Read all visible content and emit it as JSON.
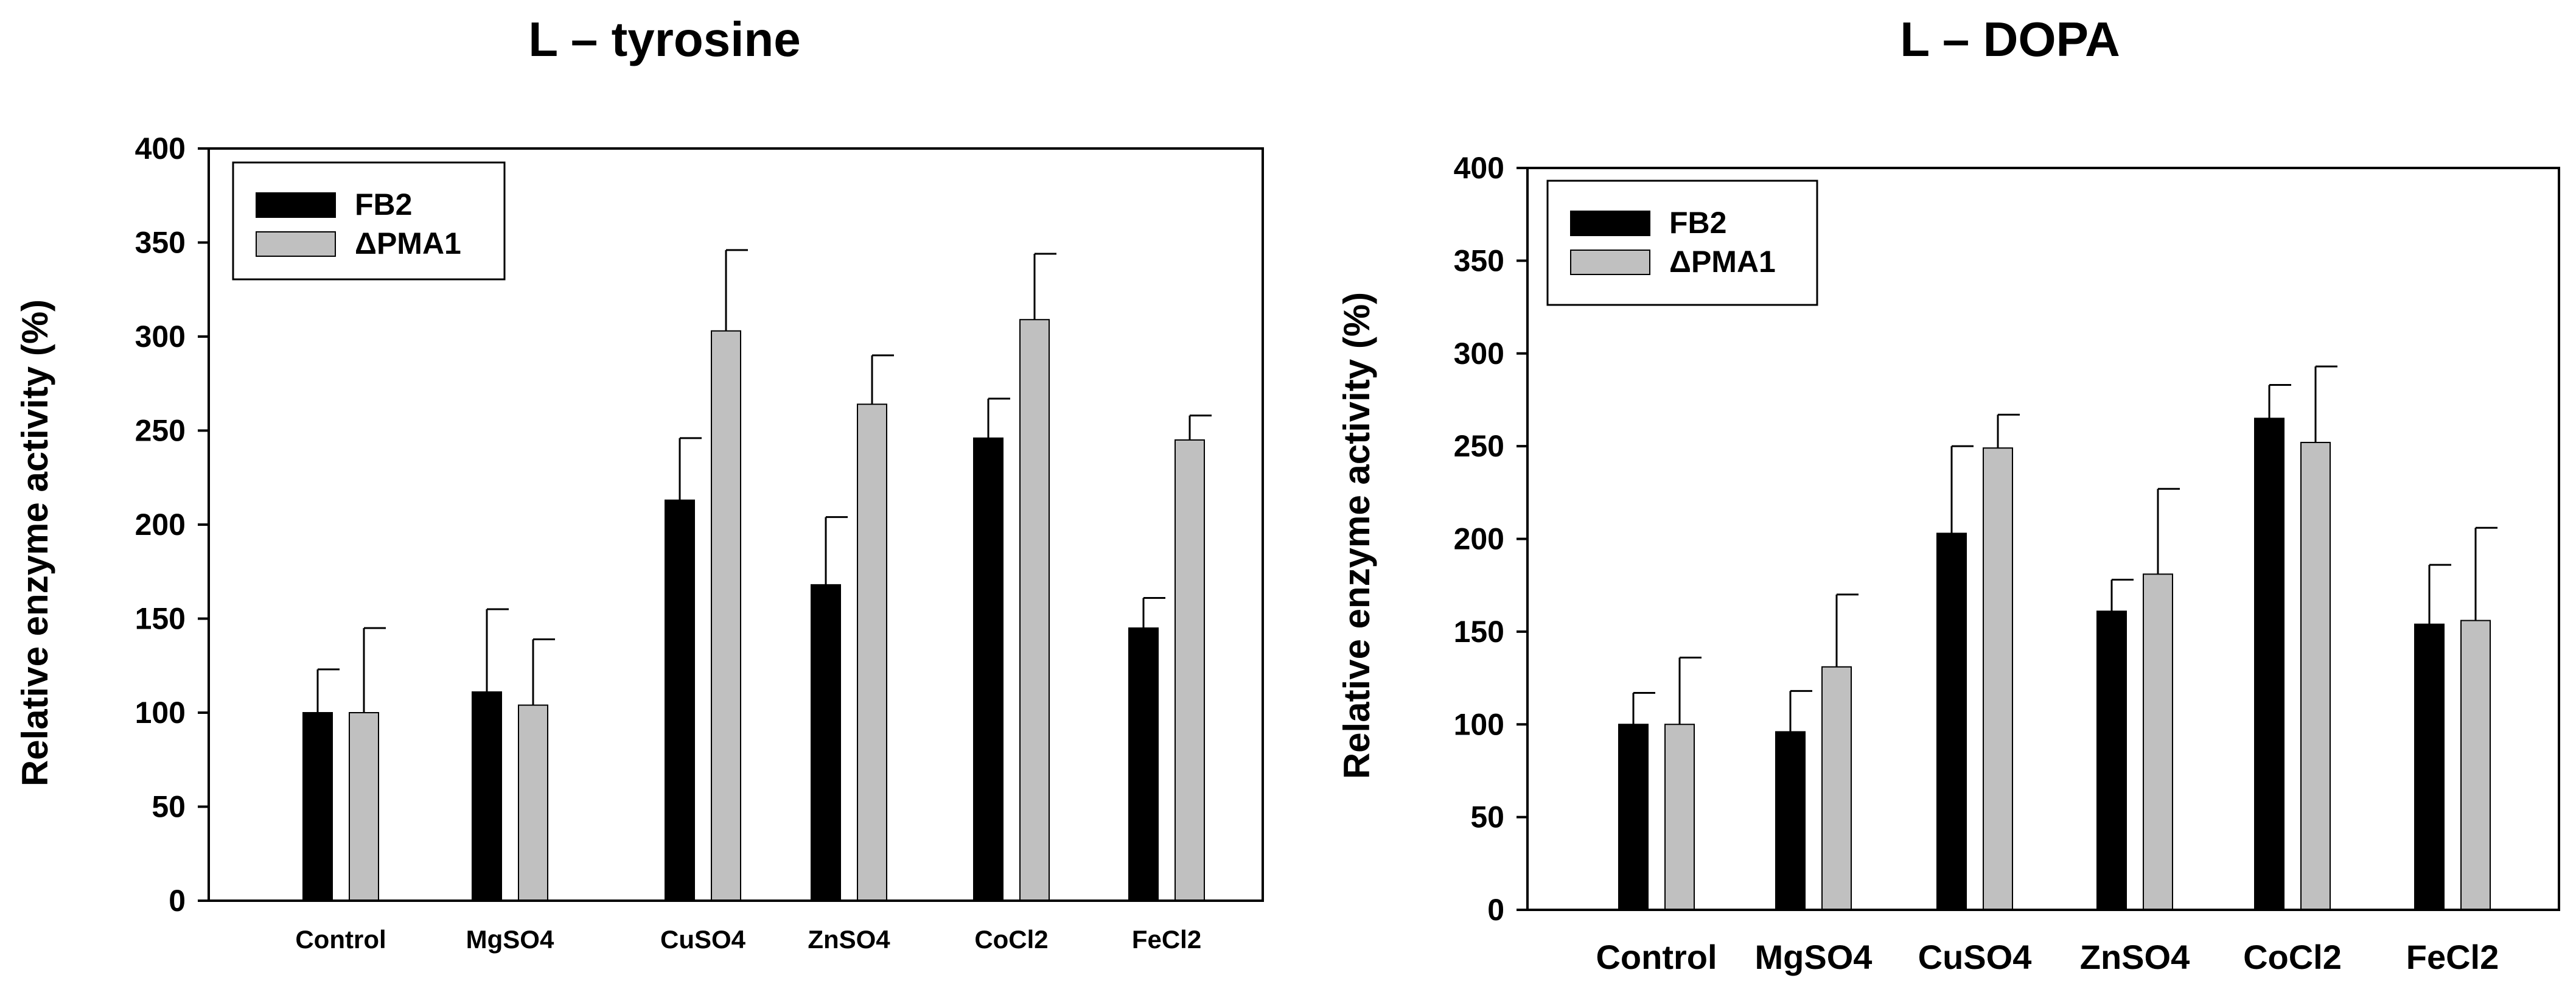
{
  "chart_data": [
    {
      "type": "bar",
      "title": "L – tyrosine",
      "xlabel": "",
      "ylabel": "Relative enzyme activity (%)",
      "ylim": [
        0,
        400
      ],
      "yticks": [
        0,
        50,
        100,
        150,
        200,
        250,
        300,
        350,
        400
      ],
      "categories": [
        "Control",
        "MgSO4",
        "CuSO4",
        "ZnSO4",
        "CoCl2",
        "FeCl2"
      ],
      "legend_position": "top-left",
      "series": [
        {
          "name": "FB2",
          "color": "#000000",
          "values": [
            100,
            111,
            213,
            168,
            246,
            145
          ],
          "errors": [
            23,
            44,
            33,
            36,
            21,
            16
          ]
        },
        {
          "name": "ΔPMA1",
          "color": "#c0c0c0",
          "values": [
            100,
            104,
            303,
            264,
            309,
            245
          ],
          "errors": [
            45,
            35,
            43,
            26,
            35,
            13
          ]
        }
      ]
    },
    {
      "type": "bar",
      "title": "L – DOPA",
      "xlabel": "",
      "ylabel": "Relative enzyme activity (%)",
      "ylim": [
        0,
        400
      ],
      "yticks": [
        0,
        50,
        100,
        150,
        200,
        250,
        300,
        350,
        400
      ],
      "categories": [
        "Control",
        "MgSO4",
        "CuSO4",
        "ZnSO4",
        "CoCl2",
        "FeCl2"
      ],
      "legend_position": "top-left",
      "series": [
        {
          "name": "FB2",
          "color": "#000000",
          "values": [
            100,
            96,
            203,
            161,
            265,
            154
          ],
          "errors": [
            17,
            22,
            47,
            17,
            18,
            32
          ]
        },
        {
          "name": "ΔPMA1",
          "color": "#c0c0c0",
          "values": [
            100,
            131,
            249,
            181,
            252,
            156
          ],
          "errors": [
            36,
            39,
            18,
            46,
            41,
            50
          ]
        }
      ]
    }
  ]
}
